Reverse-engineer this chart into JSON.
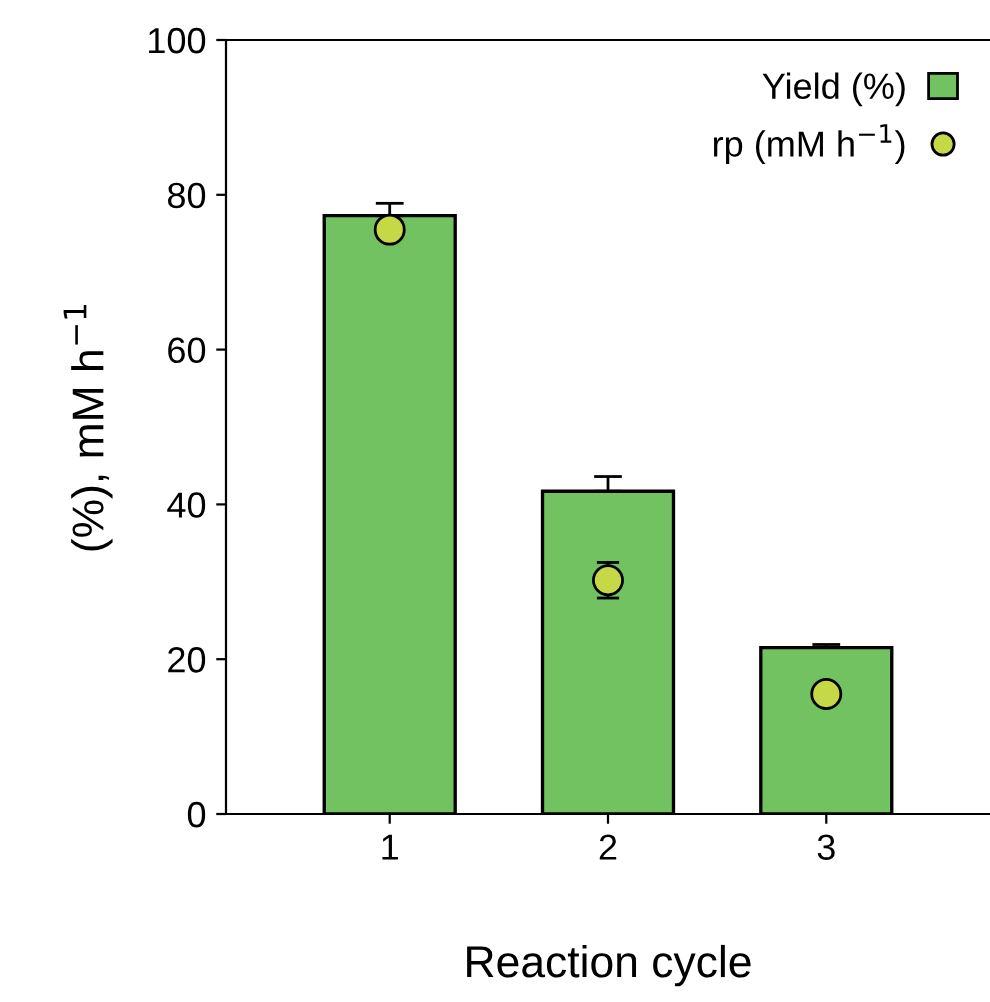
{
  "chart_data": {
    "type": "bar",
    "xlabel": "Reaction cycle",
    "ylabel": "(%), mM h$^{−1}$",
    "categories": [
      "1",
      "2",
      "3"
    ],
    "series": [
      {
        "name": "Yield (%)",
        "color": "#72c262",
        "values": [
          77.3,
          41.7,
          21.5
        ],
        "errors": [
          1.6,
          1.9,
          0.4
        ]
      },
      {
        "name": "rp (mM h$^{−1}$)",
        "type": "scatter",
        "color": "#c5d845",
        "values": [
          75.5,
          30.2,
          15.5
        ],
        "errors": [
          null,
          2.3,
          null
        ]
      }
    ],
    "ylim": [
      0,
      100
    ],
    "yticks": [
      0,
      20,
      40,
      60,
      80,
      100
    ],
    "grid": false,
    "legend": "top right",
    "marker": "circle"
  }
}
